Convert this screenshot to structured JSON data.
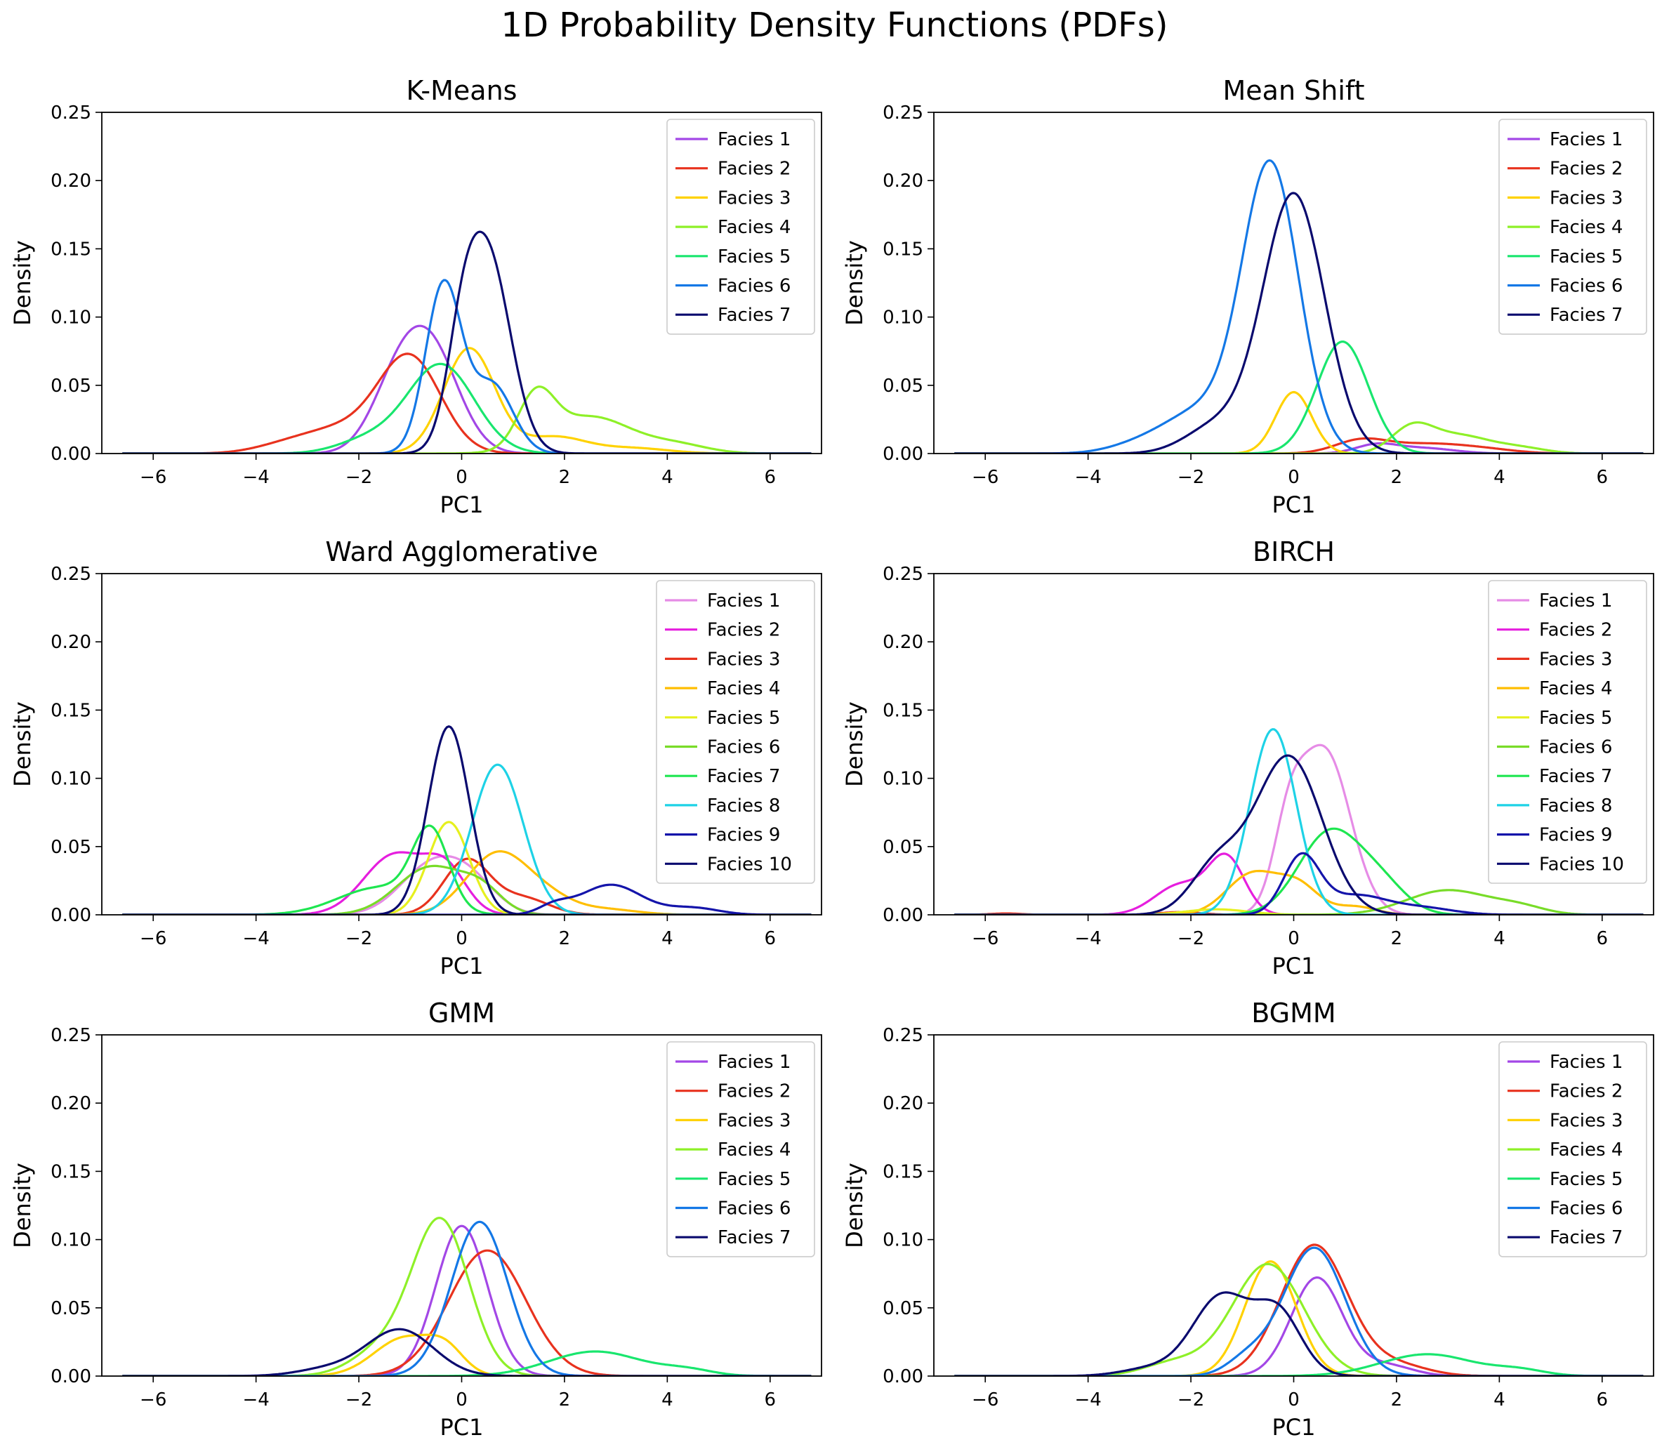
{
  "suptitle": "1D Probability Density Functions (PDFs)",
  "axis": {
    "xlabel": "PC1",
    "ylabel": "Density",
    "xlim": [
      -7,
      7
    ],
    "ylim": [
      0,
      0.25
    ],
    "xticks": [
      -6,
      -4,
      -2,
      0,
      2,
      4,
      6
    ],
    "yticks": [
      0,
      0.05,
      0.1,
      0.15,
      0.2,
      0.25
    ]
  },
  "chart_data": [
    {
      "type": "line",
      "title": "K-Means",
      "xlabel": "PC1",
      "ylabel": "Density",
      "legend": "top-right",
      "series": [
        {
          "name": "Facies 1",
          "color": "#a347e6",
          "peaks": [
            [
              -0.6,
              0.074,
              0.55
            ],
            [
              -1.3,
              0.04,
              0.5
            ]
          ]
        },
        {
          "name": "Facies 2",
          "color": "#e8321e",
          "peaks": [
            [
              -1.0,
              0.068,
              0.6
            ],
            [
              -2.3,
              0.018,
              0.8
            ],
            [
              -3.5,
              0.004,
              0.6
            ]
          ]
        },
        {
          "name": "Facies 3",
          "color": "#ffd200",
          "peaks": [
            [
              0.15,
              0.077,
              0.5
            ],
            [
              1.8,
              0.012,
              0.6
            ],
            [
              3.3,
              0.004,
              0.7
            ]
          ]
        },
        {
          "name": "Facies 4",
          "color": "#8ef028",
          "peaks": [
            [
              1.45,
              0.037,
              0.35
            ],
            [
              2.5,
              0.027,
              0.8
            ],
            [
              4.2,
              0.006,
              0.6
            ]
          ]
        },
        {
          "name": "Facies 5",
          "color": "#19e66e",
          "peaks": [
            [
              -0.4,
              0.065,
              0.65
            ],
            [
              -1.8,
              0.01,
              0.6
            ]
          ]
        },
        {
          "name": "Facies 6",
          "color": "#1478e6",
          "peaks": [
            [
              -0.35,
              0.124,
              0.35
            ],
            [
              0.6,
              0.05,
              0.4
            ]
          ]
        },
        {
          "name": "Facies 7",
          "color": "#0a0a6e",
          "peaks": [
            [
              0.5,
              0.145,
              0.45
            ],
            [
              0.0,
              0.05,
              0.3
            ]
          ]
        }
      ]
    },
    {
      "type": "line",
      "title": "Mean Shift",
      "xlabel": "PC1",
      "ylabel": "Density",
      "legend": "top-right",
      "series": [
        {
          "name": "Facies 1",
          "color": "#a347e6",
          "peaks": [
            [
              1.6,
              0.006,
              0.4
            ],
            [
              2.5,
              0.004,
              0.6
            ]
          ]
        },
        {
          "name": "Facies 2",
          "color": "#e8321e",
          "peaks": [
            [
              1.3,
              0.009,
              0.5
            ],
            [
              2.6,
              0.007,
              0.8
            ],
            [
              3.8,
              0.002,
              0.6
            ]
          ]
        },
        {
          "name": "Facies 3",
          "color": "#ffd200",
          "peaks": [
            [
              0.0,
              0.045,
              0.35
            ]
          ]
        },
        {
          "name": "Facies 4",
          "color": "#8ef028",
          "peaks": [
            [
              2.3,
              0.018,
              0.4
            ],
            [
              3.2,
              0.013,
              0.6
            ],
            [
              4.4,
              0.004,
              0.5
            ]
          ]
        },
        {
          "name": "Facies 5",
          "color": "#19e66e",
          "peaks": [
            [
              0.95,
              0.082,
              0.5
            ]
          ]
        },
        {
          "name": "Facies 6",
          "color": "#1478e6",
          "peaks": [
            [
              -0.45,
              0.21,
              0.55
            ],
            [
              -1.8,
              0.03,
              0.7
            ],
            [
              -3.0,
              0.006,
              0.6
            ]
          ]
        },
        {
          "name": "Facies 7",
          "color": "#0a0a6e",
          "peaks": [
            [
              0.0,
              0.19,
              0.6
            ],
            [
              -1.5,
              0.02,
              0.6
            ]
          ]
        }
      ]
    },
    {
      "type": "line",
      "title": "Ward Agglomerative",
      "xlabel": "PC1",
      "ylabel": "Density",
      "legend": "top-right",
      "series": [
        {
          "name": "Facies 1",
          "color": "#e68ce6",
          "peaks": [
            [
              -0.6,
              0.035,
              0.6
            ],
            [
              0.2,
              0.02,
              0.5
            ]
          ]
        },
        {
          "name": "Facies 2",
          "color": "#e61ede",
          "peaks": [
            [
              -1.3,
              0.044,
              0.6
            ],
            [
              -0.3,
              0.03,
              0.4
            ]
          ]
        },
        {
          "name": "Facies 3",
          "color": "#e8321e",
          "peaks": [
            [
              0.1,
              0.04,
              0.45
            ],
            [
              1.2,
              0.012,
              0.5
            ]
          ]
        },
        {
          "name": "Facies 4",
          "color": "#ffbe00",
          "peaks": [
            [
              0.7,
              0.045,
              0.6
            ],
            [
              1.7,
              0.01,
              0.5
            ],
            [
              2.8,
              0.004,
              0.6
            ]
          ]
        },
        {
          "name": "Facies 5",
          "color": "#e6f01e",
          "peaks": [
            [
              -0.25,
              0.068,
              0.4
            ]
          ]
        },
        {
          "name": "Facies 6",
          "color": "#78dc28",
          "peaks": [
            [
              -0.6,
              0.035,
              0.65
            ],
            [
              0.4,
              0.015,
              0.4
            ]
          ]
        },
        {
          "name": "Facies 7",
          "color": "#1ee650",
          "peaks": [
            [
              -0.6,
              0.056,
              0.35
            ],
            [
              -1.6,
              0.02,
              0.8
            ]
          ]
        },
        {
          "name": "Facies 8",
          "color": "#1ed2e6",
          "peaks": [
            [
              0.7,
              0.11,
              0.5
            ]
          ]
        },
        {
          "name": "Facies 9",
          "color": "#1414aa",
          "peaks": [
            [
              2.9,
              0.022,
              0.6
            ],
            [
              4.5,
              0.005,
              0.5
            ],
            [
              1.8,
              0.006,
              0.3
            ]
          ]
        },
        {
          "name": "Facies 10",
          "color": "#0a0a6e",
          "peaks": [
            [
              -0.25,
              0.138,
              0.4
            ]
          ]
        }
      ]
    },
    {
      "type": "line",
      "title": "BIRCH",
      "xlabel": "PC1",
      "ylabel": "Density",
      "legend": "top-right",
      "series": [
        {
          "name": "Facies 1",
          "color": "#e68ce6",
          "peaks": [
            [
              0.6,
              0.12,
              0.5
            ],
            [
              -0.1,
              0.05,
              0.3
            ]
          ]
        },
        {
          "name": "Facies 2",
          "color": "#e61ede",
          "peaks": [
            [
              -1.3,
              0.04,
              0.35
            ],
            [
              -2.2,
              0.022,
              0.5
            ]
          ]
        },
        {
          "name": "Facies 3",
          "color": "#e8321e",
          "peaks": [
            [
              -2.2,
              0.002,
              0.4
            ],
            [
              -5.6,
              0.001,
              0.3
            ]
          ]
        },
        {
          "name": "Facies 4",
          "color": "#ffbe00",
          "peaks": [
            [
              -0.8,
              0.03,
              0.5
            ],
            [
              0.1,
              0.02,
              0.4
            ],
            [
              1.2,
              0.006,
              0.4
            ]
          ]
        },
        {
          "name": "Facies 5",
          "color": "#e6f01e",
          "peaks": [
            [
              -1.5,
              0.004,
              0.6
            ]
          ]
        },
        {
          "name": "Facies 6",
          "color": "#78dc28",
          "peaks": [
            [
              3.0,
              0.018,
              0.8
            ],
            [
              4.4,
              0.005,
              0.5
            ]
          ]
        },
        {
          "name": "Facies 7",
          "color": "#1ee650",
          "peaks": [
            [
              0.7,
              0.06,
              0.6
            ],
            [
              1.7,
              0.02,
              0.5
            ]
          ]
        },
        {
          "name": "Facies 8",
          "color": "#1ed2e6",
          "peaks": [
            [
              -0.4,
              0.136,
              0.45
            ]
          ]
        },
        {
          "name": "Facies 9",
          "color": "#1414aa",
          "peaks": [
            [
              0.15,
              0.042,
              0.35
            ],
            [
              1.2,
              0.014,
              0.6
            ],
            [
              2.5,
              0.005,
              0.6
            ]
          ]
        },
        {
          "name": "Facies 10",
          "color": "#0a0a6e",
          "peaks": [
            [
              -0.1,
              0.116,
              0.65
            ],
            [
              -1.5,
              0.035,
              0.5
            ]
          ]
        }
      ]
    },
    {
      "type": "line",
      "title": "GMM",
      "xlabel": "PC1",
      "ylabel": "Density",
      "legend": "top-right",
      "series": [
        {
          "name": "Facies 1",
          "color": "#a347e6",
          "peaks": [
            [
              0.0,
              0.11,
              0.5
            ]
          ]
        },
        {
          "name": "Facies 2",
          "color": "#e8321e",
          "peaks": [
            [
              0.5,
              0.092,
              0.75
            ]
          ]
        },
        {
          "name": "Facies 3",
          "color": "#ffd200",
          "peaks": [
            [
              -1.1,
              0.028,
              0.6
            ],
            [
              -0.3,
              0.015,
              0.35
            ]
          ]
        },
        {
          "name": "Facies 4",
          "color": "#8ef028",
          "peaks": [
            [
              -0.4,
              0.112,
              0.55
            ],
            [
              -1.5,
              0.02,
              0.6
            ]
          ]
        },
        {
          "name": "Facies 5",
          "color": "#19e66e",
          "peaks": [
            [
              2.6,
              0.018,
              0.9
            ],
            [
              4.4,
              0.004,
              0.5
            ]
          ]
        },
        {
          "name": "Facies 6",
          "color": "#1478e6",
          "peaks": [
            [
              0.35,
              0.113,
              0.55
            ]
          ]
        },
        {
          "name": "Facies 7",
          "color": "#0a0a6e",
          "peaks": [
            [
              -1.2,
              0.034,
              0.65
            ],
            [
              -2.6,
              0.005,
              0.6
            ]
          ]
        }
      ]
    },
    {
      "type": "line",
      "title": "BGMM",
      "xlabel": "PC1",
      "ylabel": "Density",
      "legend": "top-right",
      "series": [
        {
          "name": "Facies 1",
          "color": "#a347e6",
          "peaks": [
            [
              0.45,
              0.072,
              0.5
            ],
            [
              1.8,
              0.008,
              0.5
            ]
          ]
        },
        {
          "name": "Facies 2",
          "color": "#e8321e",
          "peaks": [
            [
              0.4,
              0.096,
              0.65
            ],
            [
              2.0,
              0.008,
              0.6
            ]
          ]
        },
        {
          "name": "Facies 3",
          "color": "#ffd200",
          "peaks": [
            [
              -0.45,
              0.084,
              0.5
            ]
          ]
        },
        {
          "name": "Facies 4",
          "color": "#8ef028",
          "peaks": [
            [
              -0.5,
              0.082,
              0.7
            ],
            [
              -2.3,
              0.01,
              0.6
            ]
          ]
        },
        {
          "name": "Facies 5",
          "color": "#19e66e",
          "peaks": [
            [
              2.6,
              0.016,
              0.9
            ],
            [
              4.4,
              0.004,
              0.5
            ]
          ]
        },
        {
          "name": "Facies 6",
          "color": "#1478e6",
          "peaks": [
            [
              0.4,
              0.094,
              0.6
            ],
            [
              -0.9,
              0.012,
              0.4
            ]
          ]
        },
        {
          "name": "Facies 7",
          "color": "#0a0a6e",
          "peaks": [
            [
              -1.4,
              0.058,
              0.55
            ],
            [
              -0.3,
              0.045,
              0.45
            ],
            [
              -2.7,
              0.006,
              0.6
            ]
          ]
        }
      ]
    }
  ]
}
